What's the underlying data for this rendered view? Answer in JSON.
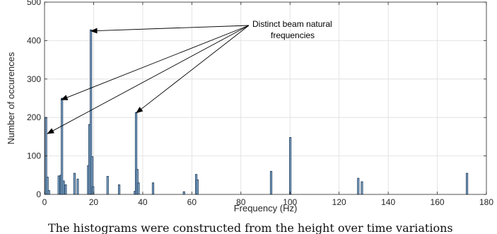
{
  "chart_data": {
    "type": "bar",
    "xlabel": "Frequency (Hz)",
    "ylabel": "Number of occurences",
    "xlim": [
      0,
      180
    ],
    "ylim": [
      0,
      500
    ],
    "xticks": [
      0,
      20,
      40,
      60,
      80,
      100,
      120,
      140,
      160,
      180
    ],
    "yticks": [
      0,
      100,
      200,
      300,
      400,
      500
    ],
    "grid": true,
    "bar_color": "#1f3b5a",
    "x": [
      0.6,
      1.2,
      1.8,
      5.8,
      6.6,
      7.1,
      7.8,
      8.6,
      12.2,
      13.5,
      17.8,
      18.3,
      18.9,
      19.4,
      19.8,
      25.7,
      30.4,
      36.8,
      37.3,
      37.8,
      38.3,
      44.2,
      56.8,
      61.8,
      62.3,
      92.3,
      100.1,
      127.8,
      129.3,
      172.1
    ],
    "values": [
      200,
      45,
      10,
      48,
      50,
      250,
      35,
      25,
      55,
      40,
      75,
      182,
      428,
      98,
      20,
      47,
      25,
      8,
      213,
      65,
      30,
      30,
      7,
      52,
      38,
      60,
      148,
      42,
      33,
      55
    ],
    "annotation": {
      "text": [
        "Distinct beam natural",
        "frequencies"
      ],
      "arrow_targets": [
        [
          1.2,
          158
        ],
        [
          6.8,
          246
        ],
        [
          18.9,
          425
        ],
        [
          37.4,
          212
        ]
      ]
    }
  },
  "caption": "The histograms were constructed from the height over time variations"
}
